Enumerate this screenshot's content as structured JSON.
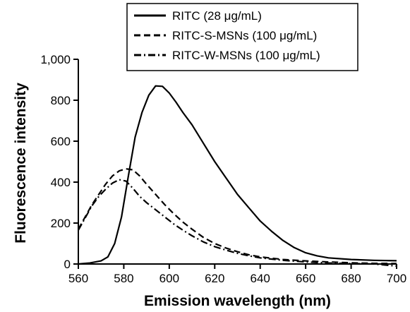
{
  "chart_data": {
    "type": "line",
    "title": "",
    "xlabel": "Emission wavelength (nm)",
    "ylabel": "Fluorescence intensity",
    "xlim": [
      560,
      700
    ],
    "ylim": [
      0,
      1000
    ],
    "x_ticks": [
      560,
      580,
      600,
      620,
      640,
      660,
      680,
      700
    ],
    "x_tick_labels": [
      "560",
      "580",
      "600",
      "620",
      "640",
      "660",
      "680",
      "700"
    ],
    "y_ticks": [
      0,
      200,
      400,
      600,
      800,
      1000
    ],
    "y_tick_labels": [
      "0",
      "200",
      "400",
      "600",
      "800",
      "1,000"
    ],
    "grid": false,
    "legend_position": "top-right",
    "series": [
      {
        "name": "RITC (28 μg/mL)",
        "line_style": "solid",
        "color": "#000000",
        "x": [
          560,
          565,
          570,
          573,
          576,
          579,
          582,
          585,
          588,
          591,
          594,
          597,
          600,
          603,
          606,
          610,
          615,
          620,
          625,
          630,
          635,
          640,
          645,
          650,
          655,
          660,
          665,
          670,
          680,
          690,
          700
        ],
        "y": [
          0,
          5,
          15,
          35,
          100,
          230,
          430,
          620,
          740,
          825,
          870,
          868,
          835,
          790,
          740,
          680,
          590,
          500,
          420,
          340,
          275,
          210,
          160,
          115,
          80,
          55,
          40,
          30,
          22,
          18,
          16
        ]
      },
      {
        "name": "RITC-S-MSNs (100 μg/mL)",
        "line_style": "dashed",
        "color": "#000000",
        "x": [
          560,
          563,
          566,
          569,
          572,
          575,
          578,
          581,
          584,
          587,
          590,
          594,
          598,
          602,
          606,
          610,
          615,
          620,
          625,
          630,
          635,
          640,
          650,
          660,
          670,
          680,
          690,
          700
        ],
        "y": [
          170,
          230,
          290,
          340,
          390,
          430,
          455,
          465,
          460,
          430,
          390,
          340,
          290,
          245,
          205,
          170,
          130,
          100,
          78,
          60,
          45,
          35,
          22,
          15,
          10,
          6,
          3,
          2
        ]
      },
      {
        "name": "RITC-W-MSNs (100 μg/mL)",
        "line_style": "dashdot",
        "color": "#000000",
        "x": [
          560,
          563,
          566,
          569,
          572,
          575,
          578,
          581,
          584,
          587,
          590,
          594,
          598,
          602,
          606,
          610,
          615,
          620,
          625,
          630,
          635,
          640,
          650,
          660,
          670,
          680,
          690,
          700
        ],
        "y": [
          165,
          225,
          285,
          330,
          365,
          395,
          412,
          405,
          370,
          330,
          300,
          265,
          230,
          195,
          165,
          138,
          108,
          85,
          68,
          52,
          40,
          30,
          18,
          10,
          5,
          2,
          0,
          -10
        ]
      }
    ]
  }
}
